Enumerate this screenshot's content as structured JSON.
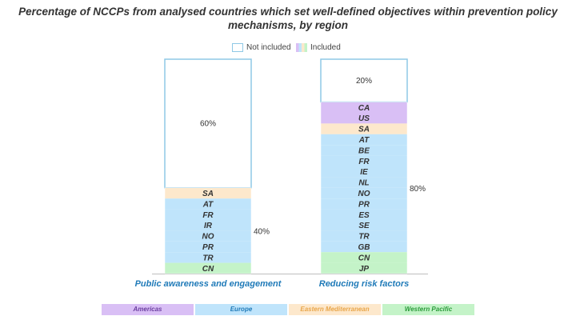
{
  "title": "Percentage of NCCPs from analysed countries which set well-defined objectives within prevention policy mechanisms, by region",
  "legend": {
    "not_included": "Not included",
    "included": "Included"
  },
  "regions": [
    {
      "name": "Americas",
      "color": "#d9bff5",
      "text_color": "#6b3fa0"
    },
    {
      "name": "Europe",
      "color": "#bfe4fb",
      "text_color": "#1f7ab8"
    },
    {
      "name": "Eastern Mediterranean",
      "color": "#fde8cc",
      "text_color": "#e8a64b"
    },
    {
      "name": "Western Pacific",
      "color": "#c4f3c8",
      "text_color": "#2b9b3a"
    }
  ],
  "chart_data": {
    "type": "bar",
    "stacked": true,
    "title": "Percentage of NCCPs from analysed countries which set well-defined objectives within prevention policy mechanisms, by region",
    "ylim": [
      0,
      100
    ],
    "categories": [
      "Public awareness and engagement",
      "Reducing risk factors"
    ],
    "bars": [
      {
        "category": "Public awareness and engagement",
        "not_included_pct": 60,
        "not_included_label": "60%",
        "included_pct": 40,
        "included_label": "40%",
        "countries": [
          {
            "code": "SA",
            "region": "Eastern Mediterranean"
          },
          {
            "code": "AT",
            "region": "Europe"
          },
          {
            "code": "FR",
            "region": "Europe"
          },
          {
            "code": "IR",
            "region": "Europe"
          },
          {
            "code": "NO",
            "region": "Europe"
          },
          {
            "code": "PR",
            "region": "Europe"
          },
          {
            "code": "TR",
            "region": "Europe"
          },
          {
            "code": "CN",
            "region": "Western Pacific"
          }
        ]
      },
      {
        "category": "Reducing risk factors",
        "not_included_pct": 20,
        "not_included_label": "20%",
        "included_pct": 80,
        "included_label": "80%",
        "countries": [
          {
            "code": "CA",
            "region": "Americas"
          },
          {
            "code": "US",
            "region": "Americas"
          },
          {
            "code": "SA",
            "region": "Eastern Mediterranean"
          },
          {
            "code": "AT",
            "region": "Europe"
          },
          {
            "code": "BE",
            "region": "Europe"
          },
          {
            "code": "FR",
            "region": "Europe"
          },
          {
            "code": "IE",
            "region": "Europe"
          },
          {
            "code": "NL",
            "region": "Europe"
          },
          {
            "code": "NO",
            "region": "Europe"
          },
          {
            "code": "PR",
            "region": "Europe"
          },
          {
            "code": "ES",
            "region": "Europe"
          },
          {
            "code": "SE",
            "region": "Europe"
          },
          {
            "code": "TR",
            "region": "Europe"
          },
          {
            "code": "GB",
            "region": "Europe"
          },
          {
            "code": "CN",
            "region": "Western Pacific"
          },
          {
            "code": "JP",
            "region": "Western Pacific"
          }
        ]
      }
    ]
  }
}
